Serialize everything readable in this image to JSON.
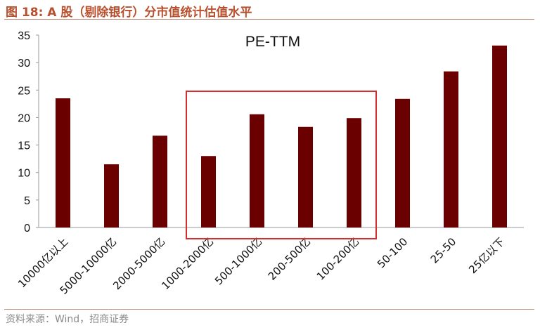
{
  "figure": {
    "label": "图 18:",
    "caption": "A 股（剔除银行）分市值统计估值水平",
    "source": "资料来源：Wind，招商证券"
  },
  "colors": {
    "bar": "#6b0000",
    "highlight_box": "#d62d2d",
    "title": "#b8502e"
  },
  "chart_data": {
    "type": "bar",
    "title": "PE-TTM",
    "xlabel": "",
    "ylabel": "",
    "categories": [
      "10000亿以上",
      "5000-10000亿",
      "2000-5000亿",
      "1000-2000亿",
      "500-1000亿",
      "200-500亿",
      "100-200亿",
      "50-100",
      "25-50",
      "25亿以下"
    ],
    "values": [
      23.5,
      11.5,
      16.7,
      13.0,
      20.6,
      18.3,
      19.9,
      23.4,
      28.4,
      33.1
    ],
    "ylim": [
      0,
      35
    ],
    "yticks": [
      0,
      5,
      10,
      15,
      20,
      25,
      30,
      35
    ],
    "grid": false,
    "legend": "none",
    "highlight": {
      "from_category": "1000-2000亿",
      "to_category": "100-200亿"
    }
  }
}
